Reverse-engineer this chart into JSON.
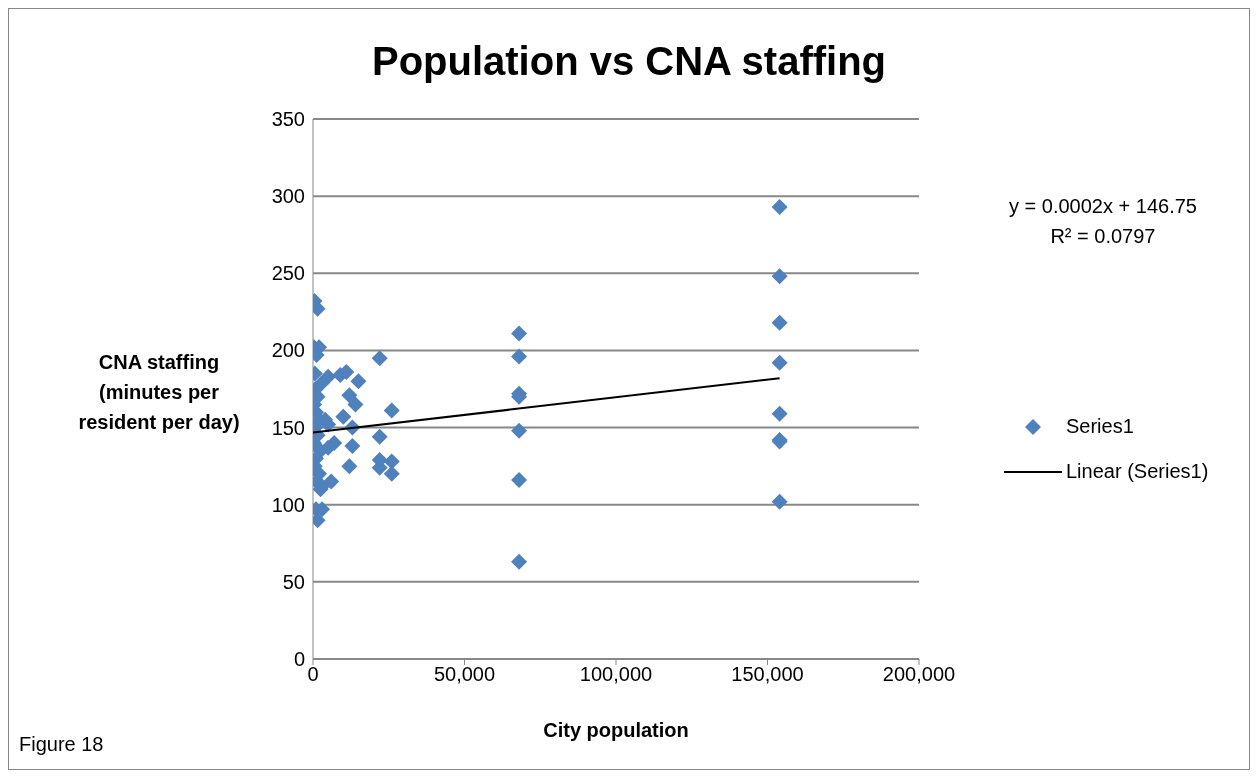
{
  "chart_data": {
    "type": "scatter",
    "title": "Population vs CNA staffing",
    "xlabel": "City population",
    "ylabel": "CNA staffing (minutes per resident per day)",
    "xlim": [
      0,
      200000
    ],
    "xticks": [
      {
        "value": 0,
        "label": "0"
      },
      {
        "value": 50000,
        "label": "50,000"
      },
      {
        "value": 100000,
        "label": "100,000"
      },
      {
        "value": 150000,
        "label": "150,000"
      },
      {
        "value": 200000,
        "label": "200,000"
      }
    ],
    "ylim": [
      0,
      350
    ],
    "yticks": [
      0,
      50,
      100,
      150,
      200,
      250,
      300,
      350
    ],
    "grid": "y",
    "legend": "right",
    "series": [
      {
        "name": "Series1",
        "marker": "diamond",
        "color": "#4f81bd",
        "x": [
          500,
          1500,
          300,
          2000,
          1200,
          600,
          2500,
          800,
          1500,
          400,
          1000,
          2000,
          700,
          1500,
          300,
          2500,
          1000,
          600,
          2000,
          1200,
          2500,
          1000,
          1500,
          5000,
          9000,
          11000,
          15000,
          12000,
          14000,
          10000,
          13000,
          4000,
          7000,
          5000,
          13000,
          22000,
          26000,
          22000,
          22000,
          22000,
          26000,
          26000,
          12000,
          6000,
          3000,
          3000,
          5000,
          68000,
          68000,
          68000,
          68000,
          68000,
          68000,
          68000,
          154000,
          154000,
          154000,
          154000,
          154000,
          154000,
          154000,
          154000
        ],
        "values": [
          232,
          227,
          202,
          202,
          197,
          185,
          178,
          175,
          170,
          165,
          160,
          155,
          150,
          145,
          140,
          135,
          130,
          125,
          120,
          115,
          110,
          97,
          90,
          183,
          184,
          186,
          180,
          171,
          165,
          157,
          150,
          155,
          140,
          137,
          138,
          195,
          161,
          144,
          129,
          124,
          128,
          120,
          125,
          115,
          112,
          97,
          152,
          211,
          196,
          172,
          170,
          148,
          116,
          63,
          293,
          248,
          218,
          192,
          159,
          142,
          141,
          102
        ]
      },
      {
        "name": "Linear (Series1)",
        "type": "line",
        "marker": "none",
        "color": "#000000",
        "x": [
          0,
          154000
        ],
        "values": [
          146.75,
          182
        ]
      }
    ],
    "annotations": [
      "y = 0.0002x + 146.75\nR² = 0.0797",
      "Figure 18"
    ]
  }
}
